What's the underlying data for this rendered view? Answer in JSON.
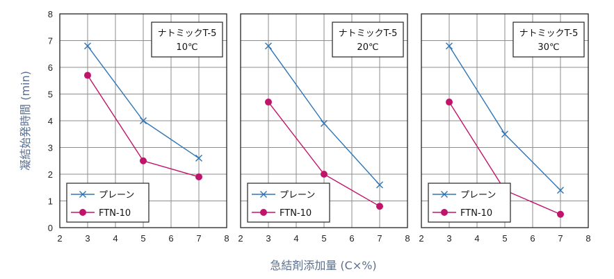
{
  "axis_titles": {
    "y": "凝結始発時間 (min)",
    "x": "急結剤添加量 (C×%)"
  },
  "colors": {
    "plain": "#2e75b6",
    "ftn": "#c0146c",
    "grid": "#8c8c8c",
    "axis_title": "#5a6f8f"
  },
  "chart_data": [
    {
      "type": "line",
      "product": "ナトミックT-5",
      "temperature": "10℃",
      "xlim": [
        2,
        8
      ],
      "ylim": [
        0,
        8
      ],
      "xticks": [
        "2",
        "3",
        "4",
        "5",
        "6",
        "7",
        "8"
      ],
      "yticks": [
        "0",
        "1",
        "2",
        "3",
        "4",
        "5",
        "6",
        "7",
        "8"
      ],
      "grid": true,
      "legend_placement": "bottom-left",
      "series": [
        {
          "name": "プレーン",
          "marker": "x-marker",
          "x": [
            3,
            5,
            7
          ],
          "y": [
            6.8,
            4.0,
            2.6
          ]
        },
        {
          "name": "FTN-10",
          "marker": "circle-marker",
          "x": [
            3,
            5,
            7
          ],
          "y": [
            5.7,
            2.5,
            1.9
          ]
        }
      ]
    },
    {
      "type": "line",
      "product": "ナトミックT-5",
      "temperature": "20℃",
      "xlim": [
        2,
        8
      ],
      "ylim": [
        0,
        8
      ],
      "xticks": [
        "2",
        "3",
        "4",
        "5",
        "6",
        "7",
        "8"
      ],
      "yticks": [],
      "grid": true,
      "legend_placement": "bottom-left",
      "series": [
        {
          "name": "プレーン",
          "marker": "x-marker",
          "x": [
            3,
            5,
            7
          ],
          "y": [
            6.8,
            3.9,
            1.6
          ]
        },
        {
          "name": "FTN-10",
          "marker": "circle-marker",
          "x": [
            3,
            5,
            7
          ],
          "y": [
            4.7,
            2.0,
            0.8
          ]
        }
      ]
    },
    {
      "type": "line",
      "product": "ナトミックT-5",
      "temperature": "30℃",
      "xlim": [
        2,
        8
      ],
      "ylim": [
        0,
        8
      ],
      "xticks": [
        "2",
        "3",
        "4",
        "5",
        "6",
        "7",
        "8"
      ],
      "yticks": [],
      "grid": true,
      "legend_placement": "bottom-left",
      "series": [
        {
          "name": "プレーン",
          "marker": "x-marker",
          "x": [
            3,
            5,
            7
          ],
          "y": [
            6.8,
            3.5,
            1.4
          ]
        },
        {
          "name": "FTN-10",
          "marker": "circle-marker",
          "x": [
            3,
            5,
            7
          ],
          "y": [
            4.7,
            1.4,
            0.5
          ]
        }
      ]
    }
  ]
}
